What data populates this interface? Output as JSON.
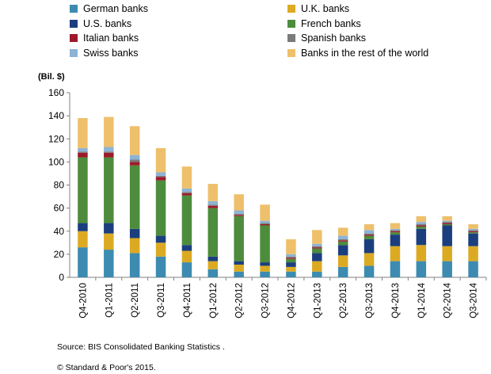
{
  "chart_data": {
    "type": "bar",
    "stacked": true,
    "ylabel": "(Bil. $)",
    "ylim": [
      0,
      160
    ],
    "yticks": [
      0,
      20,
      40,
      60,
      80,
      100,
      120,
      140,
      160
    ],
    "grid": false,
    "legend_position": "top",
    "categories": [
      "Q4-2010",
      "Q1-2011",
      "Q2-2011",
      "Q3-2011",
      "Q4-2011",
      "Q1-2012",
      "Q2-2012",
      "Q3-2012",
      "Q4-2012",
      "Q1-2013",
      "Q2-2013",
      "Q3-2013",
      "Q4-2013",
      "Q1-2014",
      "Q2-2014",
      "Q3-2014"
    ],
    "series": [
      {
        "name": "German banks",
        "color": "#3d8bb1",
        "values": [
          26,
          24,
          21,
          18,
          13,
          7,
          5,
          5,
          5,
          5,
          9,
          10,
          14,
          14,
          14,
          14
        ]
      },
      {
        "name": "U.K. banks",
        "color": "#dcaa22",
        "values": [
          14,
          14,
          13,
          12,
          10,
          7,
          6,
          5,
          4,
          9,
          10,
          11,
          13,
          14,
          13,
          13
        ]
      },
      {
        "name": "U.S. banks",
        "color": "#1b3f7e",
        "values": [
          7,
          9,
          8,
          6,
          5,
          4,
          3,
          3,
          4,
          7,
          9,
          12,
          10,
          14,
          18,
          11
        ]
      },
      {
        "name": "French banks",
        "color": "#4d8c3c",
        "values": [
          57,
          57,
          55,
          48,
          43,
          42,
          39,
          32,
          3,
          4,
          3,
          3,
          2,
          2,
          1,
          1
        ]
      },
      {
        "name": "Italian banks",
        "color": "#9c1a2a",
        "values": [
          4,
          4,
          3,
          3,
          2,
          2,
          1,
          1,
          1,
          1,
          1,
          1,
          1,
          1,
          1,
          1
        ]
      },
      {
        "name": "Spanish banks",
        "color": "#7a7a7a",
        "values": [
          1,
          1,
          2,
          1,
          1,
          1,
          1,
          1,
          1,
          1,
          1,
          1,
          1,
          1,
          1,
          1
        ]
      },
      {
        "name": "Swiss banks",
        "color": "#8db3d6",
        "values": [
          3,
          4,
          4,
          3,
          3,
          3,
          3,
          2,
          2,
          2,
          3,
          3,
          1,
          2,
          1,
          1
        ]
      },
      {
        "name": "Banks in the rest of the world",
        "color": "#eec06b",
        "values": [
          26,
          26,
          25,
          21,
          19,
          15,
          14,
          14,
          13,
          12,
          7,
          5,
          5,
          5,
          4,
          4
        ]
      }
    ]
  },
  "source_text": "Source: BIS Consolidated Banking Statistics .",
  "copyright_text": "© Standard & Poor's 2015."
}
